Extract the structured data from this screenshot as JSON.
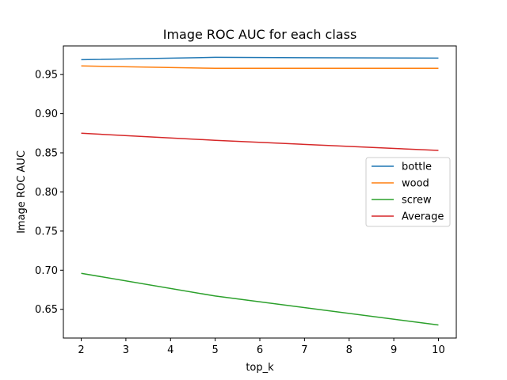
{
  "chart_data": {
    "type": "line",
    "title": "Image ROC AUC for each class",
    "xlabel": "top_k",
    "ylabel": "Image ROC AUC",
    "x": [
      2,
      5,
      10
    ],
    "xlim": [
      1.6,
      10.4
    ],
    "ylim": [
      0.6133,
      0.9866
    ],
    "xticks": [
      2,
      3,
      4,
      5,
      6,
      7,
      8,
      9,
      10
    ],
    "xtick_labels": [
      "2",
      "3",
      "4",
      "5",
      "6",
      "7",
      "8",
      "9",
      "10"
    ],
    "yticks": [
      0.65,
      0.7,
      0.75,
      0.8,
      0.85,
      0.9,
      0.95
    ],
    "ytick_labels": [
      "0.65",
      "0.70",
      "0.75",
      "0.80",
      "0.85",
      "0.90",
      "0.95"
    ],
    "grid": false,
    "legend_position": "center-right",
    "series": [
      {
        "name": "bottle",
        "color": "#1f77b4",
        "values": [
          0.969,
          0.972,
          0.971
        ]
      },
      {
        "name": "wood",
        "color": "#ff7f0e",
        "values": [
          0.961,
          0.958,
          0.958
        ]
      },
      {
        "name": "screw",
        "color": "#2ca02c",
        "values": [
          0.696,
          0.667,
          0.63
        ]
      },
      {
        "name": "Average",
        "color": "#d62728",
        "values": [
          0.875,
          0.866,
          0.853
        ]
      }
    ]
  }
}
